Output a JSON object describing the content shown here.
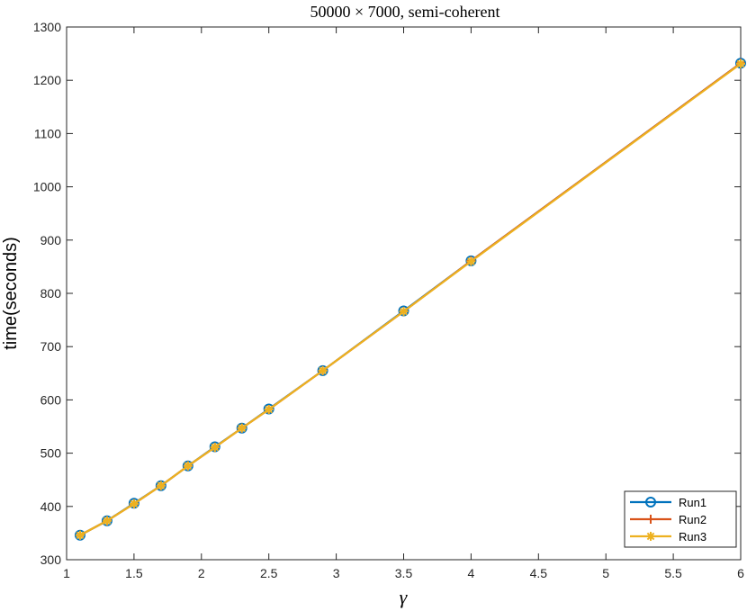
{
  "chart_data": {
    "type": "line",
    "title": "50000 × 7000, semi-coherent",
    "xlabel": "γ",
    "ylabel": "time(seconds)",
    "xlim": [
      1,
      6
    ],
    "ylim": [
      300,
      1300
    ],
    "xticks": [
      1,
      1.5,
      2,
      2.5,
      3,
      3.5,
      4,
      4.5,
      5,
      5.5,
      6
    ],
    "xtick_labels": [
      "1",
      "1.5",
      "2",
      "2.5",
      "3",
      "3.5",
      "4",
      "4.5",
      "5",
      "5.5",
      "6"
    ],
    "yticks": [
      300,
      400,
      500,
      600,
      700,
      800,
      900,
      1000,
      1100,
      1200,
      1300
    ],
    "ytick_labels": [
      "300",
      "400",
      "500",
      "600",
      "700",
      "800",
      "900",
      "1000",
      "1100",
      "1200",
      "1300"
    ],
    "grid": false,
    "legend_position": "bottom-right",
    "x": [
      1.1,
      1.3,
      1.5,
      1.7,
      1.9,
      2.1,
      2.3,
      2.5,
      2.9,
      3.5,
      4,
      6
    ],
    "series": [
      {
        "name": "Run1",
        "color": "#0072BD",
        "marker": "circle",
        "values": [
          346,
          373,
          406,
          439,
          476,
          512,
          547,
          583,
          655,
          767,
          861,
          1232
        ]
      },
      {
        "name": "Run2",
        "color": "#D95319",
        "marker": "plus",
        "values": [
          346,
          373,
          405,
          439,
          476,
          511,
          547,
          582,
          655,
          766,
          861,
          1232
        ]
      },
      {
        "name": "Run3",
        "color": "#EDB120",
        "marker": "asterisk",
        "values": [
          346,
          373,
          405,
          439,
          476,
          511,
          547,
          582,
          655,
          766,
          860,
          1231
        ]
      }
    ]
  }
}
